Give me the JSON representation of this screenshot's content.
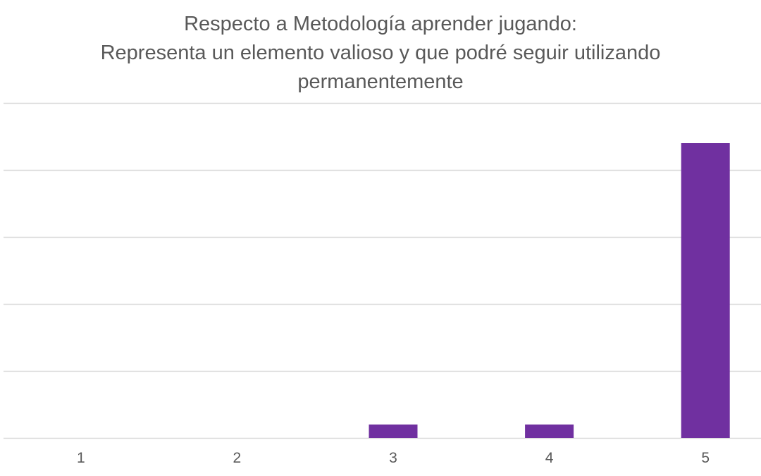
{
  "chart_data": {
    "type": "bar",
    "title_lines": [
      "Respecto a Metodología aprender jugando:",
      "Representa un elemento valioso y que podré seguir utilizando",
      "permanentemente"
    ],
    "categories": [
      "1",
      "2",
      "3",
      "4",
      "5"
    ],
    "values": [
      0,
      0,
      1,
      1,
      22
    ],
    "ylim": [
      0,
      25
    ],
    "y_gridline_step": 5,
    "y_tick_labels_shown": false,
    "grid": true,
    "legend": "none",
    "bar_color": "#7030A0",
    "grid_color": "#D9D9D9",
    "text_color": "#595959"
  }
}
